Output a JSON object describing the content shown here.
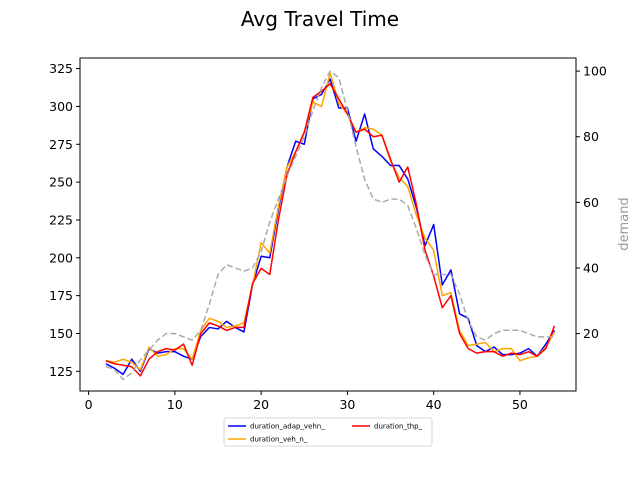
{
  "chart_data": {
    "type": "line",
    "title": "Avg Travel Time",
    "xlabel": "",
    "ylabel": "",
    "y2label": "demand",
    "xlim": [
      -1,
      56.5
    ],
    "ylim": [
      112,
      332
    ],
    "y2lim": [
      2.5,
      104
    ],
    "xticks": [
      0,
      10,
      20,
      30,
      40,
      50
    ],
    "yticks": [
      125,
      150,
      175,
      200,
      225,
      250,
      275,
      300,
      325
    ],
    "y2ticks": [
      20,
      40,
      60,
      80,
      100
    ],
    "grid": false,
    "legend_position": "below-center",
    "x": [
      2,
      3,
      4,
      5,
      6,
      7,
      8,
      9,
      10,
      11,
      12,
      13,
      14,
      15,
      16,
      17,
      18,
      19,
      20,
      21,
      22,
      23,
      24,
      25,
      26,
      27,
      28,
      29,
      30,
      31,
      32,
      33,
      34,
      35,
      36,
      37,
      38,
      39,
      40,
      41,
      42,
      43,
      44,
      45,
      46,
      47,
      48,
      49,
      50,
      51,
      52,
      53,
      54
    ],
    "series": [
      {
        "name": "duration_adap_vehn_",
        "color": "#0000ff",
        "axis": "left",
        "values": [
          130,
          127,
          123,
          133,
          125,
          140,
          137,
          138,
          138,
          135,
          133,
          148,
          154,
          153,
          158,
          154,
          151,
          182,
          201,
          200,
          232,
          260,
          277,
          275,
          305,
          308,
          318,
          299,
          299,
          277,
          295,
          272,
          267,
          261,
          261,
          252,
          233,
          208,
          222,
          182,
          192,
          163,
          160,
          142,
          138,
          141,
          136,
          136,
          137,
          140,
          135,
          143,
          152
        ]
      },
      {
        "name": "duration_veh_n_",
        "color": "#ffa500",
        "axis": "left",
        "values": [
          132,
          131,
          133,
          131,
          126,
          141,
          135,
          136,
          140,
          140,
          133,
          152,
          160,
          158,
          154,
          155,
          157,
          182,
          210,
          203,
          234,
          260,
          270,
          283,
          303,
          300,
          322,
          302,
          295,
          283,
          286,
          285,
          281,
          264,
          253,
          247,
          228,
          213,
          205,
          175,
          177,
          152,
          142,
          143,
          144,
          138,
          140,
          140,
          132,
          134,
          135,
          141,
          151
        ]
      },
      {
        "name": "duration_thp_",
        "color": "#ff0000",
        "axis": "left",
        "values": [
          132,
          130,
          129,
          128,
          122,
          133,
          138,
          140,
          139,
          143,
          129,
          150,
          157,
          155,
          152,
          154,
          154,
          183,
          193,
          189,
          225,
          255,
          270,
          283,
          306,
          310,
          315,
          305,
          295,
          283,
          285,
          280,
          281,
          265,
          250,
          260,
          235,
          205,
          188,
          167,
          175,
          150,
          140,
          137,
          138,
          138,
          135,
          137,
          136,
          138,
          135,
          140,
          155
        ]
      },
      {
        "name": "",
        "color": "#aaaaaa",
        "axis": "right",
        "dashed": true,
        "values": [
          10,
          9,
          6,
          8,
          12,
          15,
          18,
          20,
          20,
          19,
          18,
          21,
          29,
          38,
          41,
          40,
          39,
          40,
          45,
          54,
          61,
          68,
          74,
          80,
          88,
          95,
          100,
          98,
          88,
          77,
          67,
          61,
          60,
          61,
          61,
          59,
          52,
          44,
          38,
          38,
          38,
          32,
          24,
          19,
          18,
          20,
          21,
          21,
          21,
          20,
          19,
          19,
          19
        ]
      }
    ]
  }
}
